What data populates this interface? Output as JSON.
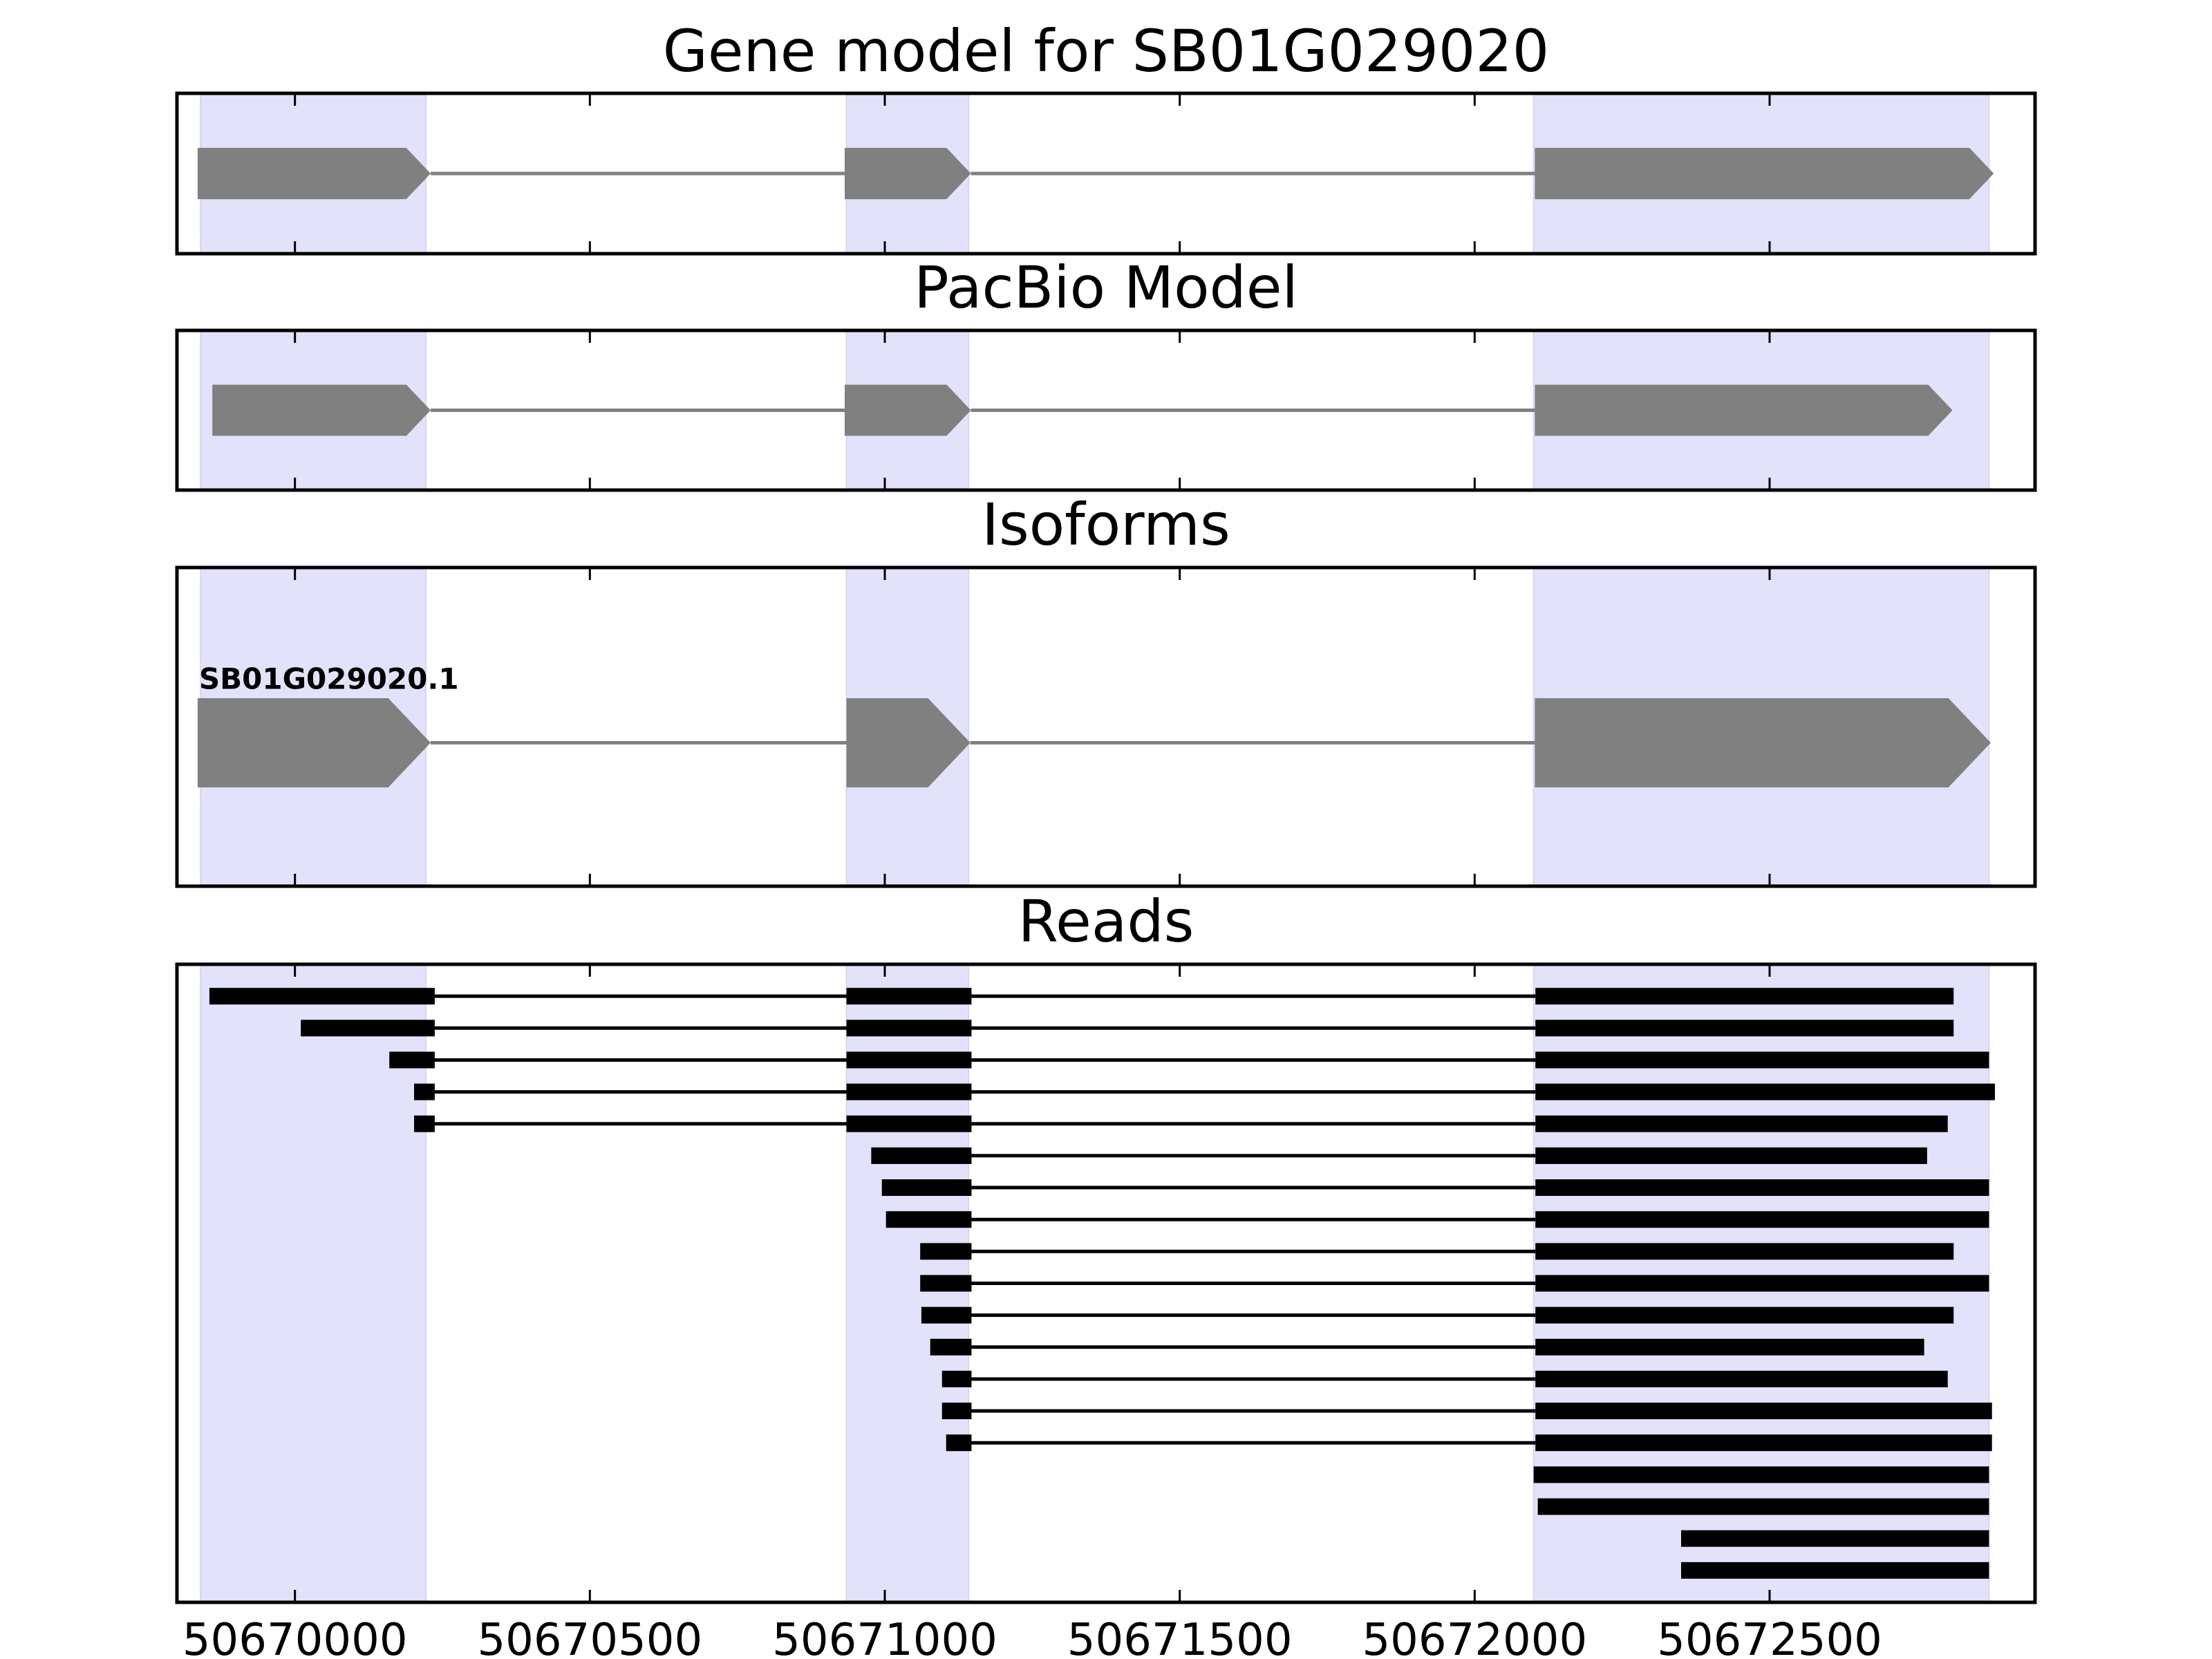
{
  "chart_data": {
    "type": "gene_model_tracks",
    "xlim": [
      50669800,
      50672950
    ],
    "xticks": [
      50670000,
      50670500,
      50671000,
      50671500,
      50672000,
      50672500
    ],
    "xtick_labels": [
      "50670000",
      "50670500",
      "50671000",
      "50671500",
      "50672000",
      "50672500"
    ],
    "highlight_color": "#e2e2fb",
    "exon_color": "#808080",
    "read_color": "#000000",
    "highlight_regions": [
      [
        50669840,
        50670222
      ],
      [
        50670935,
        50671142
      ],
      [
        50672100,
        50672872
      ]
    ],
    "panels": [
      {
        "name": "gene-model",
        "title": "Gene model for SB01G029020",
        "ylim": [
          0,
          1
        ],
        "exon_height": 0.32,
        "gene_line_y": 0.5,
        "exons": [
          [
            50669835,
            50670230
          ],
          [
            50670932,
            50671146
          ],
          [
            50672102,
            50672880
          ]
        ]
      },
      {
        "name": "pacbio-model",
        "title": "PacBio Model",
        "ylim": [
          0,
          1
        ],
        "exon_height": 0.32,
        "gene_line_y": 0.5,
        "exons": [
          [
            50669860,
            50670230
          ],
          [
            50670932,
            50671146
          ],
          [
            50672102,
            50672810
          ]
        ]
      },
      {
        "name": "isoforms",
        "title": "Isoforms",
        "ylim": [
          0,
          1
        ],
        "exon_height": 0.28,
        "gene_line_y": 0.45,
        "isoform_label": "SB01G029020.1",
        "label_y": 0.65,
        "exons": [
          [
            50669835,
            50670230
          ],
          [
            50670935,
            50671145
          ],
          [
            50672102,
            50672875
          ]
        ]
      },
      {
        "name": "reads",
        "title": "Reads",
        "ylim": [
          0,
          20
        ],
        "reads": [
          [
            [
              50669855,
              50670237
            ],
            [
              50670935,
              50671147
            ],
            [
              50672103,
              50672812
            ]
          ],
          [
            [
              50670010,
              50670237
            ],
            [
              50670935,
              50671147
            ],
            [
              50672103,
              50672812
            ]
          ],
          [
            [
              50670160,
              50670237
            ],
            [
              50670935,
              50671147
            ],
            [
              50672103,
              50672872
            ]
          ],
          [
            [
              50670202,
              50670237
            ],
            [
              50670935,
              50671147
            ],
            [
              50672103,
              50672882
            ]
          ],
          [
            [
              50670202,
              50670237
            ],
            [
              50670935,
              50671147
            ],
            [
              50672103,
              50672802
            ]
          ],
          [
            [
              50670977,
              50671147
            ],
            [
              50672103,
              50672767
            ]
          ],
          [
            [
              50670995,
              50671147
            ],
            [
              50672103,
              50672872
            ]
          ],
          [
            [
              50671002,
              50671147
            ],
            [
              50672103,
              50672872
            ]
          ],
          [
            [
              50671060,
              50671147
            ],
            [
              50672103,
              50672812
            ]
          ],
          [
            [
              50671060,
              50671147
            ],
            [
              50672103,
              50672872
            ]
          ],
          [
            [
              50671062,
              50671147
            ],
            [
              50672103,
              50672812
            ]
          ],
          [
            [
              50671077,
              50671147
            ],
            [
              50672103,
              50672762
            ]
          ],
          [
            [
              50671097,
              50671147
            ],
            [
              50672103,
              50672802
            ]
          ],
          [
            [
              50671097,
              50671147
            ],
            [
              50672103,
              50672877
            ]
          ],
          [
            [
              50671104,
              50671147
            ],
            [
              50672103,
              50672877
            ]
          ],
          [
            [
              50672100,
              50672872
            ]
          ],
          [
            [
              50672107,
              50672872
            ]
          ],
          [
            [
              50672350,
              50672872
            ]
          ],
          [
            [
              50672350,
              50672872
            ]
          ]
        ]
      }
    ]
  }
}
